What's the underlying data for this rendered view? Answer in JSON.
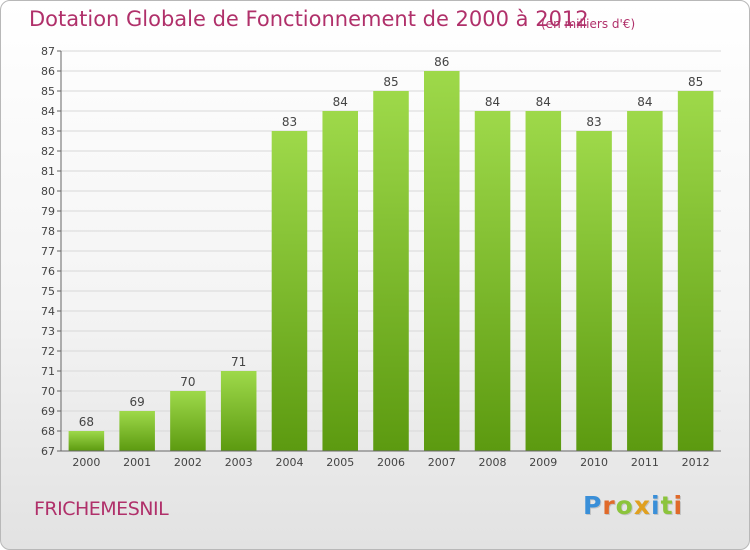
{
  "title": "Dotation Globale de Fonctionnement de 2000 à 2012",
  "unit": "(en milliers d'€)",
  "commune": "FRICHEMESNIL",
  "logo": {
    "letters": [
      "P",
      "r",
      "o",
      "x",
      "i",
      "t",
      "i"
    ],
    "colors": [
      "#3a8fd8",
      "#e06a2a",
      "#8cc43c",
      "#e0a020",
      "#3a8fd8",
      "#8cc43c",
      "#e06a2a"
    ]
  },
  "colors": {
    "bar_top": "#9ed94a",
    "bar_bottom": "#5c9a10",
    "text": "#b0306a",
    "grid": "#d8d8d8"
  },
  "chart_data": {
    "type": "bar",
    "categories": [
      "2000",
      "2001",
      "2002",
      "2003",
      "2004",
      "2005",
      "2006",
      "2007",
      "2008",
      "2009",
      "2010",
      "2011",
      "2012"
    ],
    "values": [
      68,
      69,
      70,
      71,
      83,
      84,
      85,
      86,
      84,
      84,
      83,
      84,
      85
    ],
    "title": "Dotation Globale de Fonctionnement de 2000 à 2012",
    "xlabel": "",
    "ylabel": "",
    "ylim": [
      67,
      87
    ],
    "yticks": [
      67,
      68,
      69,
      70,
      71,
      72,
      73,
      74,
      75,
      76,
      77,
      78,
      79,
      80,
      81,
      82,
      83,
      84,
      85,
      86,
      87
    ],
    "grid": true,
    "legend": "none",
    "data_labels": true
  }
}
